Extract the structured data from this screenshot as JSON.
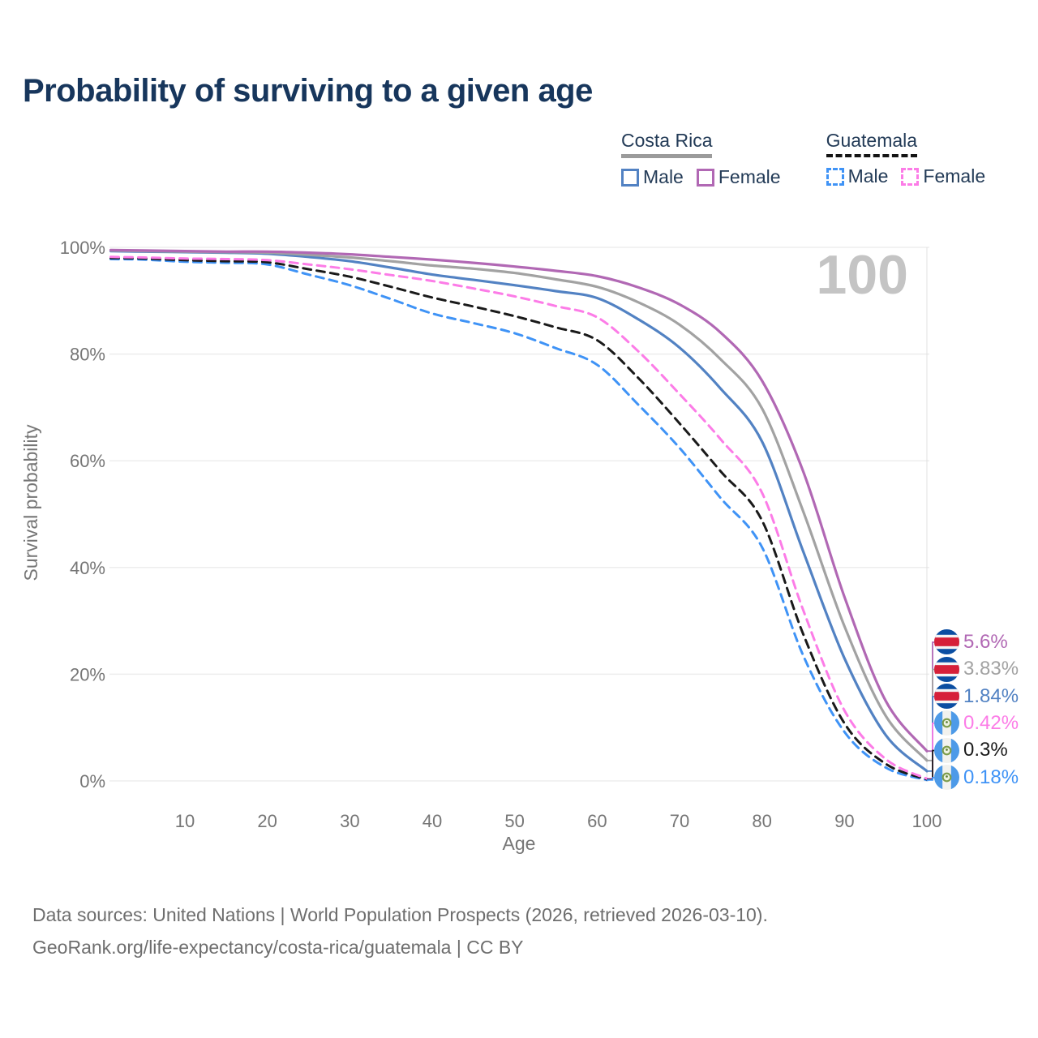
{
  "title": "Probability of surviving to a given age",
  "legend": {
    "groups": [
      {
        "label": "Costa Rica",
        "line_style": "solid",
        "items": [
          {
            "label": "Male",
            "color": "#5282c3"
          },
          {
            "label": "Female",
            "color": "#b168b4"
          }
        ]
      },
      {
        "label": "Guatemala",
        "line_style": "dashed",
        "items": [
          {
            "label": "Male",
            "color": "#3f93f6"
          },
          {
            "label": "Female",
            "color": "#fc7ce7"
          }
        ]
      }
    ]
  },
  "chart_data": {
    "type": "line",
    "title": "Probability of surviving to a given age",
    "xlabel": "Age",
    "ylabel": "Survival probability",
    "xlim": [
      0,
      100
    ],
    "ylim": [
      0,
      100
    ],
    "grid": "horizontal",
    "highlight_age_label": "100",
    "x_ticks": [
      10,
      20,
      30,
      40,
      50,
      60,
      70,
      80,
      90,
      100
    ],
    "y_ticks": [
      {
        "value": 0,
        "label": "0%"
      },
      {
        "value": 20,
        "label": "20%"
      },
      {
        "value": 40,
        "label": "40%"
      },
      {
        "value": 60,
        "label": "60%"
      },
      {
        "value": 80,
        "label": "80%"
      },
      {
        "value": 100,
        "label": "100%"
      }
    ],
    "x": [
      1,
      5,
      10,
      15,
      20,
      25,
      30,
      35,
      40,
      45,
      50,
      55,
      60,
      65,
      70,
      75,
      80,
      85,
      90,
      95,
      100
    ],
    "series": [
      {
        "name": "Guatemala Male",
        "country": "Guatemala",
        "sex": "Male",
        "color": "#3f93f6",
        "dash": "dashed",
        "values": [
          97.8,
          97.7,
          97.3,
          97.1,
          96.8,
          94.9,
          92.9,
          90.3,
          87.6,
          85.8,
          83.9,
          81.1,
          78.0,
          70.5,
          62.4,
          53.0,
          43.8,
          23.5,
          9.2,
          2.5,
          0.18
        ]
      },
      {
        "name": "Guatemala (both sexes)",
        "country": "Guatemala",
        "sex": "Both",
        "color": "#1a1a1a",
        "dash": "dashed",
        "values": [
          98.0,
          97.9,
          97.6,
          97.4,
          97.2,
          95.9,
          94.5,
          92.6,
          90.6,
          88.9,
          87.1,
          85.0,
          82.6,
          75.5,
          67.0,
          58.0,
          48.8,
          27.5,
          10.8,
          3.2,
          0.3
        ]
      },
      {
        "name": "Guatemala Female",
        "country": "Guatemala",
        "sex": "Female",
        "color": "#fc7ce7",
        "dash": "dashed",
        "values": [
          98.2,
          98.1,
          97.9,
          97.8,
          97.6,
          96.8,
          95.9,
          94.8,
          93.7,
          92.3,
          90.8,
          89.0,
          86.9,
          80.5,
          72.5,
          64.0,
          54.0,
          32.0,
          13.2,
          4.1,
          0.42
        ]
      },
      {
        "name": "Costa Rica Male",
        "country": "Costa Rica",
        "sex": "Male",
        "color": "#5282c3",
        "dash": "solid",
        "values": [
          99.3,
          99.2,
          99.1,
          99.0,
          98.8,
          98.2,
          97.4,
          96.2,
          94.9,
          93.9,
          92.9,
          91.8,
          90.5,
          86.5,
          81.2,
          73.5,
          63.6,
          43.0,
          23.0,
          8.6,
          1.84
        ]
      },
      {
        "name": "Costa Rica (both sexes)",
        "country": "Costa Rica",
        "sex": "Both",
        "color": "#a2a2a2",
        "dash": "solid",
        "values": [
          99.4,
          99.3,
          99.2,
          99.1,
          99.0,
          98.6,
          98.1,
          97.4,
          96.6,
          96.0,
          95.2,
          94.0,
          92.6,
          89.7,
          85.5,
          79.0,
          69.8,
          50.5,
          29.0,
          12.2,
          3.83
        ]
      },
      {
        "name": "Costa Rica Female",
        "country": "Costa Rica",
        "sex": "Female",
        "color": "#b168b4",
        "dash": "solid",
        "values": [
          99.5,
          99.4,
          99.3,
          99.2,
          99.2,
          99.0,
          98.7,
          98.2,
          97.7,
          97.1,
          96.4,
          95.6,
          94.6,
          92.5,
          89.3,
          84.0,
          75.0,
          58.0,
          34.5,
          15.0,
          5.6
        ]
      }
    ],
    "end_labels": [
      {
        "series": "Costa Rica Female",
        "text": "5.6%",
        "flag": "costa-rica"
      },
      {
        "series": "Costa Rica (both sexes)",
        "text": "3.83%",
        "flag": "costa-rica"
      },
      {
        "series": "Costa Rica Male",
        "text": "1.84%",
        "flag": "costa-rica"
      },
      {
        "series": "Guatemala Female",
        "text": "0.42%",
        "flag": "guatemala"
      },
      {
        "series": "Guatemala (both sexes)",
        "text": "0.3%",
        "flag": "guatemala"
      },
      {
        "series": "Guatemala Male",
        "text": "0.18%",
        "flag": "guatemala"
      }
    ]
  },
  "footer": {
    "line1": "Data sources: United Nations | World Population Prospects (2026, retrieved 2026-03-10).",
    "line2": "GeoRank.org/life-expectancy/costa-rica/guatemala | CC BY"
  }
}
